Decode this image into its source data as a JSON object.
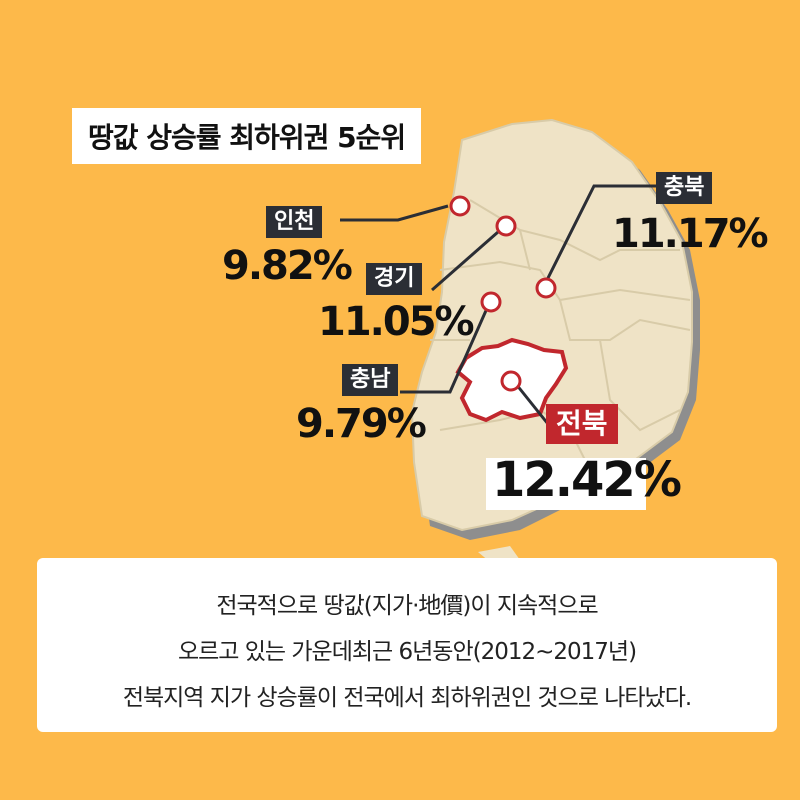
{
  "title": "땅값 상승률 최하위권 5순위",
  "regions": [
    {
      "name": "인천",
      "value": "9.82%"
    },
    {
      "name": "경기",
      "value": "11.05%"
    },
    {
      "name": "충북",
      "value": "11.17%"
    },
    {
      "name": "충남",
      "value": "9.79%"
    },
    {
      "name": "전북",
      "value": "12.42%"
    }
  ],
  "caption": {
    "line1": "전국적으로 땅값(지가·地價)이 지속적으로",
    "line2": "오르고 있는 가운데최근 6년동안(2012~2017년)",
    "line3": "전북지역 지가 상승률이 전국에서 최하위권인 것으로 나타났다."
  },
  "colors": {
    "background": "#FDB94A",
    "map_fill": "#EFE3C6",
    "map_shadow": "#8E8E8E",
    "highlight": "#C1272D",
    "label_dark": "#2B2E35"
  }
}
